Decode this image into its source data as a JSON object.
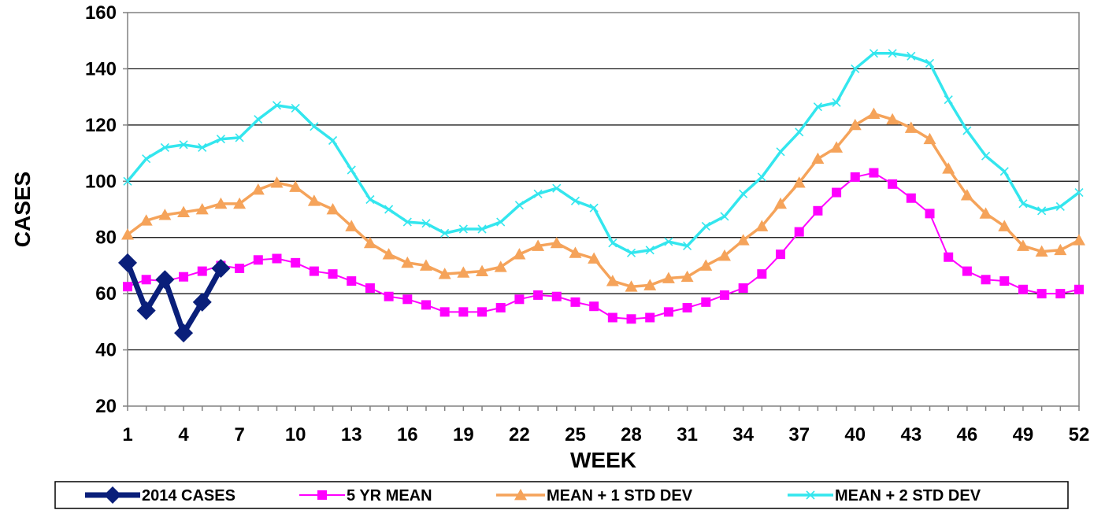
{
  "chart_data": {
    "type": "line",
    "xlabel": "WEEK",
    "ylabel": "CASES",
    "ylim": [
      20,
      160
    ],
    "yticks": [
      20,
      40,
      60,
      80,
      100,
      120,
      140,
      160
    ],
    "xlim": [
      1,
      52
    ],
    "xticks": [
      1,
      4,
      7,
      10,
      13,
      16,
      19,
      22,
      25,
      28,
      31,
      34,
      37,
      40,
      43,
      46,
      49,
      52
    ],
    "grid": "horizontal",
    "legend_position": "bottom",
    "series": [
      {
        "name": "2014 CASES",
        "color": "#0a1f7a",
        "marker": "diamond",
        "x": [
          1,
          2,
          3,
          4,
          5,
          6
        ],
        "values": [
          71,
          54,
          65,
          46,
          57,
          69
        ]
      },
      {
        "name": "5 YR MEAN",
        "color": "#ff00ff",
        "marker": "square",
        "x": [
          1,
          2,
          3,
          4,
          5,
          6,
          7,
          8,
          9,
          10,
          11,
          12,
          13,
          14,
          15,
          16,
          17,
          18,
          19,
          20,
          21,
          22,
          23,
          24,
          25,
          26,
          27,
          28,
          29,
          30,
          31,
          32,
          33,
          34,
          35,
          36,
          37,
          38,
          39,
          40,
          41,
          42,
          43,
          44,
          45,
          46,
          47,
          48,
          49,
          50,
          51,
          52
        ],
        "values": [
          62.5,
          65,
          64.5,
          66,
          68,
          70,
          69,
          72,
          72.5,
          71,
          68,
          67,
          64.5,
          62,
          59,
          58,
          56,
          53.5,
          53.5,
          53.5,
          55,
          58,
          59.5,
          59,
          57,
          55.5,
          51.5,
          51,
          51.5,
          53.5,
          55,
          57,
          59.5,
          62,
          67,
          74,
          82,
          89.5,
          96,
          101.5,
          103,
          99,
          94,
          88.5,
          73,
          68,
          65,
          64.5,
          61.5,
          60,
          60,
          61.5
        ]
      },
      {
        "name": "MEAN + 1 STD DEV",
        "color": "#f5a35a",
        "marker": "triangle",
        "x": [
          1,
          2,
          3,
          4,
          5,
          6,
          7,
          8,
          9,
          10,
          11,
          12,
          13,
          14,
          15,
          16,
          17,
          18,
          19,
          20,
          21,
          22,
          23,
          24,
          25,
          26,
          27,
          28,
          29,
          30,
          31,
          32,
          33,
          34,
          35,
          36,
          37,
          38,
          39,
          40,
          41,
          42,
          43,
          44,
          45,
          46,
          47,
          48,
          49,
          50,
          51,
          52
        ],
        "values": [
          81,
          86,
          88,
          89,
          90,
          92,
          92,
          97,
          99.5,
          98,
          93,
          90,
          84,
          78,
          74,
          71,
          70,
          67,
          67.5,
          68,
          69.5,
          74,
          77,
          78,
          74.5,
          72.5,
          64.5,
          62.5,
          63,
          65.5,
          66,
          70,
          73.5,
          79,
          84,
          92,
          99.5,
          108,
          112,
          120,
          124,
          122,
          119,
          115,
          104.5,
          95,
          88.5,
          84,
          77,
          75,
          75.5,
          79
        ]
      },
      {
        "name": "MEAN + 2 STD DEV",
        "color": "#33e6ee",
        "marker": "x",
        "x": [
          1,
          2,
          3,
          4,
          5,
          6,
          7,
          8,
          9,
          10,
          11,
          12,
          13,
          14,
          15,
          16,
          17,
          18,
          19,
          20,
          21,
          22,
          23,
          24,
          25,
          26,
          27,
          28,
          29,
          30,
          31,
          32,
          33,
          34,
          35,
          36,
          37,
          38,
          39,
          40,
          41,
          42,
          43,
          44,
          45,
          46,
          47,
          48,
          49,
          50,
          51,
          52
        ],
        "values": [
          100,
          108,
          112,
          113,
          112,
          115,
          115.5,
          122,
          127,
          126,
          119.5,
          114.5,
          104,
          93.5,
          90,
          85.5,
          85,
          81.5,
          83,
          83,
          85.5,
          91.5,
          95.5,
          97.5,
          93,
          90.5,
          78,
          74.5,
          75.5,
          78.5,
          77,
          84,
          87.5,
          95.5,
          101.5,
          110.5,
          117.5,
          126.5,
          128,
          140,
          145.5,
          145.5,
          144.5,
          142,
          129,
          118,
          109,
          103.5,
          92,
          89.5,
          91,
          96
        ]
      }
    ]
  }
}
